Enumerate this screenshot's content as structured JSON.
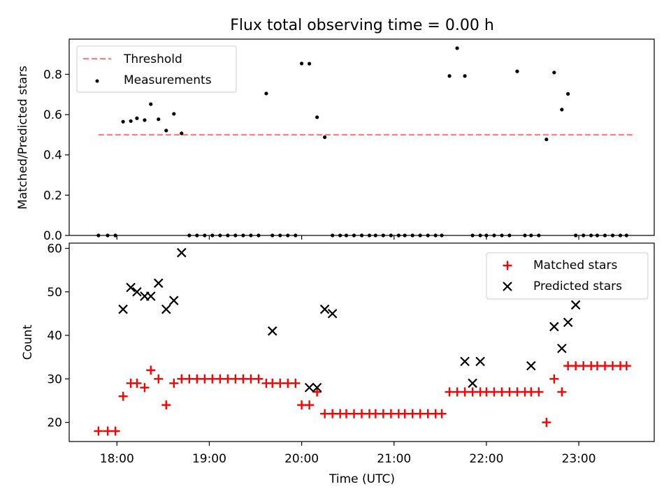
{
  "title": "Flux total observing time = 0.00 h",
  "colors": {
    "threshold": "#ff0000",
    "threshold_alpha": 0.5,
    "measurement": "#000000",
    "matched": "#ff0000",
    "predicted": "#000000"
  },
  "chart_data": [
    {
      "type": "scatter",
      "ylabel": "Matched/Predicted stars",
      "xlabel": "",
      "xlim": [
        "17:29",
        "23:49"
      ],
      "ylim": [
        0,
        0.975
      ],
      "yticks": [
        0.0,
        0.2,
        0.4,
        0.6,
        0.8
      ],
      "ytick_labels": [
        "0.0",
        "0.2",
        "0.4",
        "0.6",
        "0.8"
      ],
      "grid": false,
      "legend": "upper left",
      "threshold": {
        "name": "Threshold",
        "value": 0.5,
        "x_range": [
          "17:48",
          "23:36"
        ]
      },
      "series": [
        {
          "name": "Measurements",
          "x": [
            "17:48",
            "17:54",
            "17:59",
            "18:04",
            "18:09",
            "18:13",
            "18:18",
            "18:22",
            "18:27",
            "18:32",
            "18:37",
            "18:42",
            "18:47",
            "18:52",
            "18:57",
            "19:02",
            "19:07",
            "19:12",
            "19:17",
            "19:22",
            "19:27",
            "19:32",
            "19:37",
            "19:41",
            "19:46",
            "19:51",
            "19:56",
            "20:00",
            "20:05",
            "20:10",
            "20:15",
            "20:20",
            "20:25",
            "20:29",
            "20:34",
            "20:39",
            "20:44",
            "20:48",
            "20:53",
            "20:58",
            "21:03",
            "21:07",
            "21:12",
            "21:17",
            "21:22",
            "21:27",
            "21:31",
            "21:36",
            "21:41",
            "21:46",
            "21:51",
            "21:56",
            "22:00",
            "22:05",
            "22:10",
            "22:15",
            "22:20",
            "22:25",
            "22:29",
            "22:34",
            "22:39",
            "22:44",
            "22:49",
            "22:53",
            "22:58",
            "23:03",
            "23:08",
            "23:12",
            "23:17",
            "23:22",
            "23:27",
            "23:31"
          ],
          "y": [
            0,
            0,
            0,
            0.565,
            0.568,
            0.582,
            0.573,
            0.652,
            0.577,
            0.521,
            0.604,
            0.507,
            0,
            0,
            0,
            0,
            0,
            0,
            0,
            0,
            0,
            0,
            0.705,
            0,
            0,
            0,
            0,
            0.854,
            0.853,
            0.587,
            0.488,
            0,
            0,
            0,
            0,
            0,
            0,
            0,
            0,
            0,
            0,
            0,
            0,
            0,
            0,
            0,
            0,
            0.792,
            0.93,
            0.792,
            0,
            0,
            0,
            0,
            0,
            0,
            0.815,
            0,
            0,
            0,
            0.477,
            0.809,
            0.625,
            0.703,
            0,
            0,
            0,
            0,
            0,
            0,
            0,
            0
          ]
        }
      ]
    },
    {
      "type": "scatter",
      "xlabel": "Time (UTC)",
      "ylabel": "Count",
      "xlim": [
        "17:29",
        "23:49"
      ],
      "ylim": [
        15.6,
        61.2
      ],
      "xticks": [
        "18:00",
        "19:00",
        "20:00",
        "21:00",
        "22:00",
        "23:00"
      ],
      "yticks": [
        20,
        30,
        40,
        50,
        60
      ],
      "grid": false,
      "legend": "upper right",
      "series": [
        {
          "name": "Matched stars",
          "marker": "+",
          "x": [
            "17:48",
            "17:54",
            "17:59",
            "18:04",
            "18:09",
            "18:13",
            "18:18",
            "18:22",
            "18:27",
            "18:32",
            "18:37",
            "18:42",
            "18:47",
            "18:52",
            "18:57",
            "19:02",
            "19:07",
            "19:12",
            "19:17",
            "19:22",
            "19:27",
            "19:32",
            "19:37",
            "19:41",
            "19:46",
            "19:51",
            "19:56",
            "20:00",
            "20:05",
            "20:10",
            "20:15",
            "20:20",
            "20:25",
            "20:29",
            "20:34",
            "20:39",
            "20:44",
            "20:48",
            "20:53",
            "20:58",
            "21:03",
            "21:07",
            "21:12",
            "21:17",
            "21:22",
            "21:27",
            "21:31",
            "21:36",
            "21:41",
            "21:46",
            "21:51",
            "21:56",
            "22:00",
            "22:05",
            "22:10",
            "22:15",
            "22:20",
            "22:25",
            "22:29",
            "22:34",
            "22:39",
            "22:44",
            "22:49",
            "22:53",
            "22:58",
            "23:03",
            "23:08",
            "23:12",
            "23:17",
            "23:22",
            "23:27",
            "23:31"
          ],
          "y": [
            18,
            18,
            18,
            26,
            29,
            29,
            28,
            32,
            30,
            24,
            29,
            30,
            30,
            30,
            30,
            30,
            30,
            30,
            30,
            30,
            30,
            30,
            29,
            29,
            29,
            29,
            29,
            24,
            24,
            27,
            22,
            22,
            22,
            22,
            22,
            22,
            22,
            22,
            22,
            22,
            22,
            22,
            22,
            22,
            22,
            22,
            22,
            27,
            27,
            27,
            27,
            27,
            27,
            27,
            27,
            27,
            27,
            27,
            27,
            27,
            20,
            30,
            27,
            33,
            33,
            33,
            33,
            33,
            33,
            33,
            33,
            33
          ]
        },
        {
          "name": "Predicted stars",
          "marker": "x",
          "x": [
            "18:04",
            "18:09",
            "18:13",
            "18:18",
            "18:22",
            "18:27",
            "18:32",
            "18:37",
            "18:42",
            "19:41",
            "20:05",
            "20:10",
            "20:15",
            "20:20",
            "21:46",
            "21:51",
            "21:56",
            "22:29",
            "22:44",
            "22:49",
            "22:53",
            "22:58"
          ],
          "y": [
            46,
            51,
            50,
            49,
            49,
            52,
            46,
            48,
            59,
            41,
            28,
            28,
            46,
            45,
            34,
            29,
            34,
            33,
            42,
            37,
            43,
            47
          ]
        }
      ]
    }
  ]
}
